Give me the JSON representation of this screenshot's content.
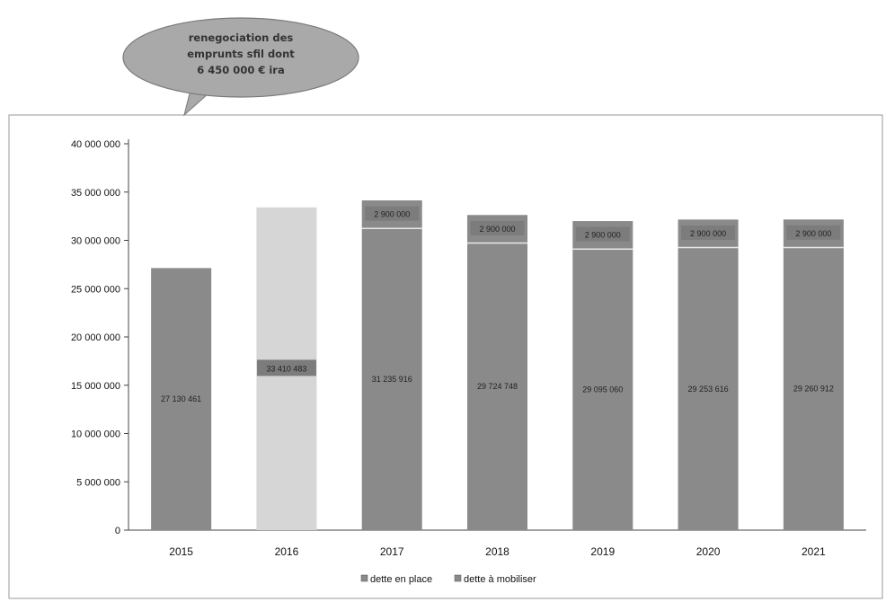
{
  "callout": {
    "lines": [
      "renegociation des",
      "emprunts sfil  dont",
      "6 450 000 € ira"
    ]
  },
  "colors": {
    "bar": "#8a8a8a",
    "bar_highlight": "#d6d6d6",
    "label_box": "#7c7c7c",
    "bubble_fill": "#a9a9a9",
    "frame": "#9a9a9a"
  },
  "chart_data": {
    "type": "bar",
    "stacked": true,
    "categories": [
      "2015",
      "2016",
      "2017",
      "2018",
      "2019",
      "2020",
      "2021"
    ],
    "ylim": [
      0,
      40000000
    ],
    "yticks": [
      0,
      5000000,
      10000000,
      15000000,
      20000000,
      25000000,
      30000000,
      35000000,
      40000000
    ],
    "ytick_labels": [
      "0",
      "5 000 000",
      "10 000 000",
      "15 000 000",
      "20 000 000",
      "25 000 000",
      "30 000 000",
      "35 000 000",
      "40 000 000"
    ],
    "legend_position": "bottom",
    "grid": false,
    "series": [
      {
        "name": "dette en place",
        "values": [
          27130461,
          33410483,
          31235916,
          29724748,
          29095060,
          29253616,
          29260912
        ],
        "labels": [
          "27 130 461",
          "33 410 483",
          "31 235 916",
          "29 724 748",
          "29 095 060",
          "29 253 616",
          "29 260 912"
        ]
      },
      {
        "name": "dette à mobiliser",
        "values": [
          0,
          0,
          2900000,
          2900000,
          2900000,
          2900000,
          2900000
        ],
        "labels": [
          "",
          "",
          "2 900 000",
          "2 900 000",
          "2 900 000",
          "2 900 000",
          "2 900 000"
        ]
      }
    ],
    "highlight_category": "2016"
  }
}
